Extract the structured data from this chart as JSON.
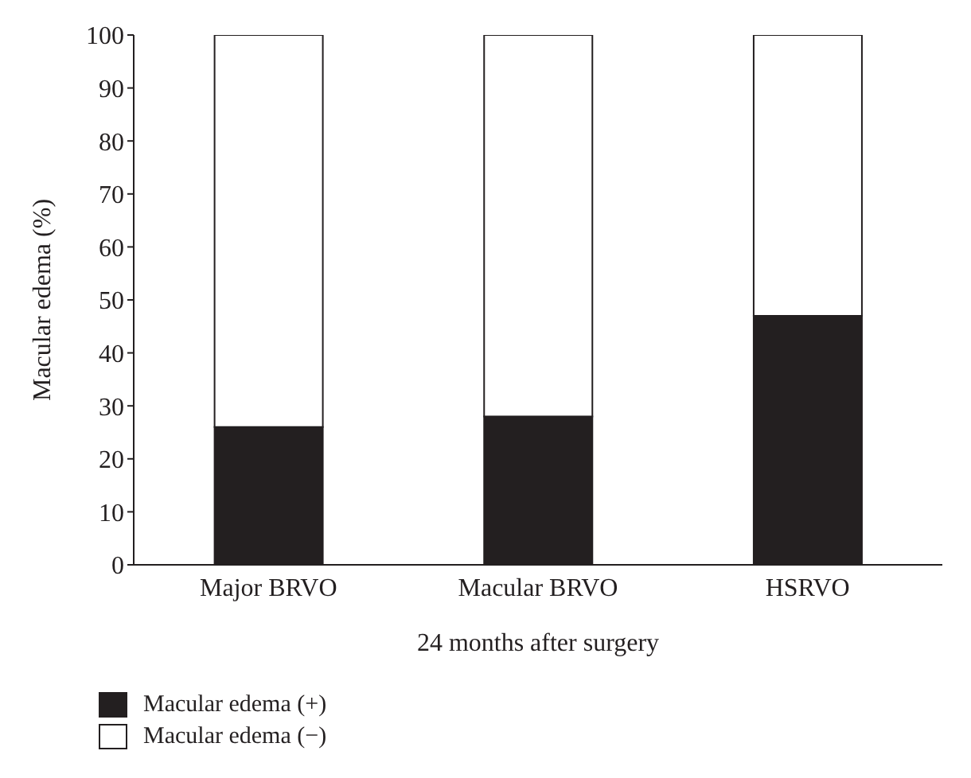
{
  "chart_data": {
    "type": "bar",
    "stacked": true,
    "xlabel": "24 months after surgery",
    "ylabel": "Macular edema (%)",
    "categories": [
      "Major BRVO",
      "Macular BRVO",
      "HSRVO"
    ],
    "series": [
      {
        "name": "Macular edema (+)",
        "color": "#231f20",
        "values": [
          26,
          28,
          47
        ]
      },
      {
        "name": "Macular edema (−)",
        "color": "#ffffff",
        "values": [
          74,
          72,
          53
        ]
      }
    ],
    "ylim": [
      0,
      100
    ],
    "yticks": [
      0,
      10,
      20,
      30,
      40,
      50,
      60,
      70,
      80,
      90,
      100
    ],
    "grid": false,
    "legend": "bottom left"
  }
}
